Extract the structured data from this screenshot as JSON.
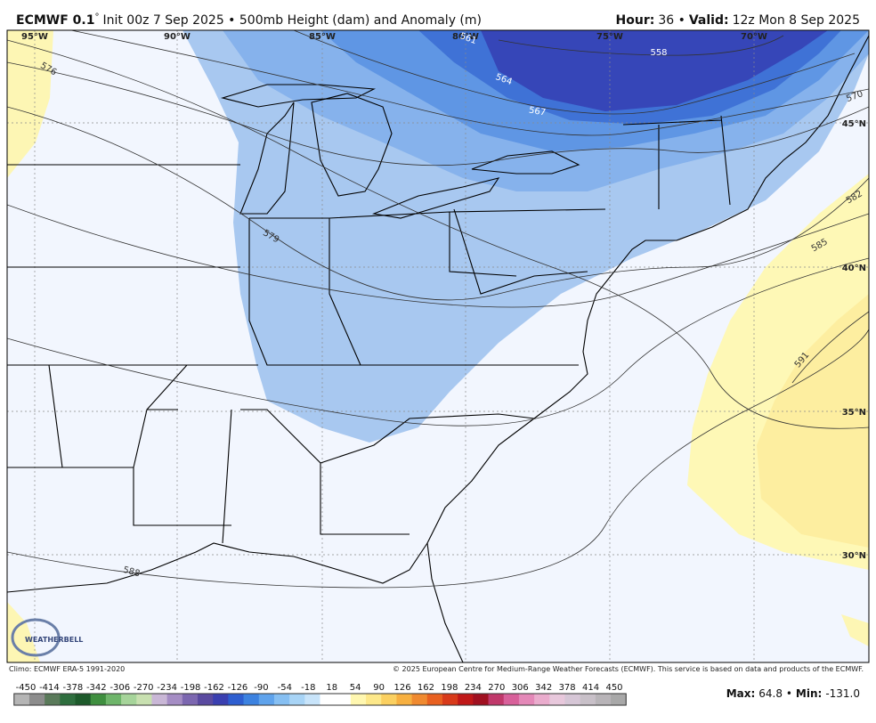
{
  "header": {
    "model": "ECMWF 0.1",
    "degree": "°",
    "description": "Init 00z 7 Sep 2025 • 500mb Height (dam) and Anomaly (m)",
    "hour_label": "Hour:",
    "hour": "36 •",
    "valid_label": "Valid:",
    "valid": "12z Mon 8 Sep 2025"
  },
  "map": {
    "longitudes": [
      "95°W",
      "90°W",
      "85°W",
      "80°W",
      "75°W",
      "70°W"
    ],
    "latitudes": [
      "45°N",
      "40°N",
      "35°N",
      "30°N"
    ],
    "contour_labels": [
      "576",
      "579",
      "582",
      "585",
      "588",
      "591",
      "558",
      "561",
      "564",
      "567",
      "570"
    ],
    "logo": "WEATHERBELL"
  },
  "footer": {
    "climo": "Climo: ECMWF ERA-5 1991-2020",
    "copyright": "© 2025 European Centre for Medium-Range Weather Forecasts (ECMWF). This service is based on data and products of the ECMWF."
  },
  "colorbar": {
    "ticks": [
      "-450",
      "-414",
      "-378",
      "-342",
      "-306",
      "-270",
      "-234",
      "-198",
      "-162",
      "-126",
      "-90",
      "-54",
      "-18",
      "18",
      "54",
      "90",
      "126",
      "162",
      "198",
      "234",
      "270",
      "306",
      "342",
      "378",
      "414",
      "450"
    ]
  },
  "stats": {
    "max_label": "Max:",
    "max": "64.8 •",
    "min_label": "Min:",
    "min": "-131.0"
  }
}
